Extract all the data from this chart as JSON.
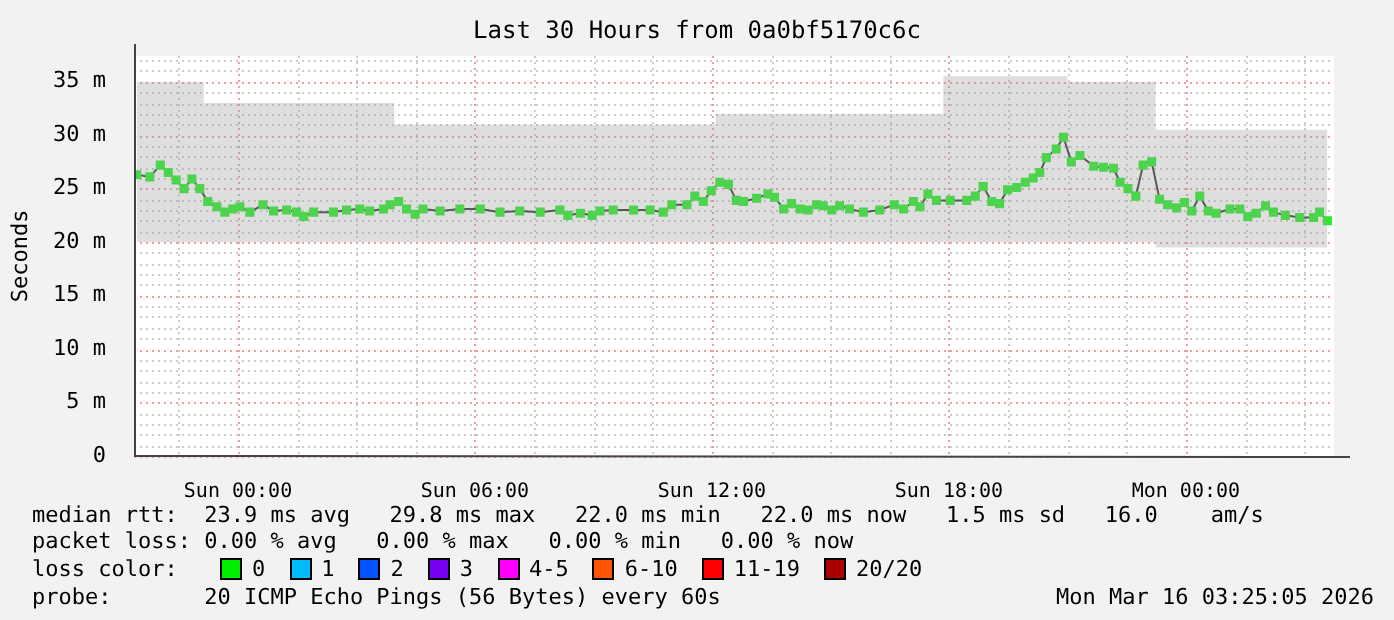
{
  "chart_data": {
    "type": "line",
    "title": "Last 30 Hours from 0a0bf5170c6c",
    "ylabel": "Seconds",
    "xlim": [
      "2026-03-14T21:22",
      "2026-03-16T03:45"
    ],
    "xticks": [
      {
        "value": "2026-03-15T00:00",
        "label": "Sun 00:00"
      },
      {
        "value": "2026-03-15T06:00",
        "label": "Sun 06:00"
      },
      {
        "value": "2026-03-15T12:00",
        "label": "Sun 12:00"
      },
      {
        "value": "2026-03-15T18:00",
        "label": "Sun 18:00"
      },
      {
        "value": "2026-03-16T00:00",
        "label": "Mon 00:00"
      }
    ],
    "ylim": [
      0,
      37.4
    ],
    "yticks": [
      {
        "value": 0,
        "label": "0"
      },
      {
        "value": 5,
        "label": "5 m"
      },
      {
        "value": 10,
        "label": "10 m"
      },
      {
        "value": 15,
        "label": "15 m"
      },
      {
        "value": 20,
        "label": "20 m"
      },
      {
        "value": 25,
        "label": "25 m"
      },
      {
        "value": 30,
        "label": "30 m"
      },
      {
        "value": 35,
        "label": "35 m"
      }
    ],
    "grid": true,
    "marker": "square",
    "line_style": "solid",
    "series": [
      {
        "color": "#22ee22",
        "x": [
          "2026-03-14T21:26",
          "2026-03-14T21:46",
          "2026-03-14T22:02",
          "2026-03-14T22:14",
          "2026-03-14T22:26",
          "2026-03-14T22:38",
          "2026-03-14T22:50",
          "2026-03-14T23:02",
          "2026-03-14T23:14",
          "2026-03-14T23:28",
          "2026-03-14T23:40",
          "2026-03-14T23:52",
          "2026-03-15T00:03",
          "2026-03-15T00:18",
          "2026-03-15T00:38",
          "2026-03-15T00:54",
          "2026-03-15T01:14",
          "2026-03-15T01:29",
          "2026-03-15T01:40",
          "2026-03-15T01:55",
          "2026-03-15T02:25",
          "2026-03-15T02:45",
          "2026-03-15T03:05",
          "2026-03-15T03:20",
          "2026-03-15T03:41",
          "2026-03-15T03:51",
          "2026-03-15T04:04",
          "2026-03-15T04:16",
          "2026-03-15T04:29",
          "2026-03-15T04:41",
          "2026-03-15T05:07",
          "2026-03-15T05:37",
          "2026-03-15T06:08",
          "2026-03-15T06:38",
          "2026-03-15T07:08",
          "2026-03-15T07:39",
          "2026-03-15T08:09",
          "2026-03-15T08:21",
          "2026-03-15T08:40",
          "2026-03-15T08:58",
          "2026-03-15T09:10",
          "2026-03-15T09:30",
          "2026-03-15T10:01",
          "2026-03-15T10:26",
          "2026-03-15T10:46",
          "2026-03-15T10:59",
          "2026-03-15T11:22",
          "2026-03-15T11:34",
          "2026-03-15T11:47",
          "2026-03-15T11:59",
          "2026-03-15T12:12",
          "2026-03-15T12:25",
          "2026-03-15T12:37",
          "2026-03-15T12:48",
          "2026-03-15T13:08",
          "2026-03-15T13:25",
          "2026-03-15T13:35",
          "2026-03-15T13:49",
          "2026-03-15T14:01",
          "2026-03-15T14:14",
          "2026-03-15T14:26",
          "2026-03-15T14:39",
          "2026-03-15T14:49",
          "2026-03-15T15:02",
          "2026-03-15T15:14",
          "2026-03-15T15:29",
          "2026-03-15T15:50",
          "2026-03-15T16:15",
          "2026-03-15T16:37",
          "2026-03-15T16:51",
          "2026-03-15T17:06",
          "2026-03-15T17:16",
          "2026-03-15T17:28",
          "2026-03-15T17:41",
          "2026-03-15T18:02",
          "2026-03-15T18:27",
          "2026-03-15T18:40",
          "2026-03-15T18:52",
          "2026-03-15T19:05",
          "2026-03-15T19:17",
          "2026-03-15T19:29",
          "2026-03-15T19:43",
          "2026-03-15T19:56",
          "2026-03-15T20:08",
          "2026-03-15T20:18",
          "2026-03-15T20:28",
          "2026-03-15T20:43",
          "2026-03-15T20:54",
          "2026-03-15T21:06",
          "2026-03-15T21:19",
          "2026-03-15T21:40",
          "2026-03-15T21:55",
          "2026-03-15T22:10",
          "2026-03-15T22:20",
          "2026-03-15T22:32",
          "2026-03-15T22:44",
          "2026-03-15T22:55",
          "2026-03-15T23:08",
          "2026-03-15T23:20",
          "2026-03-15T23:32",
          "2026-03-15T23:46",
          "2026-03-15T23:58",
          "2026-03-16T00:09",
          "2026-03-16T00:21",
          "2026-03-16T00:34",
          "2026-03-16T00:46",
          "2026-03-16T01:07",
          "2026-03-16T01:22",
          "2026-03-16T01:34",
          "2026-03-16T01:47",
          "2026-03-16T02:01",
          "2026-03-16T02:13",
          "2026-03-16T02:31",
          "2026-03-16T02:53",
          "2026-03-16T03:14",
          "2026-03-16T03:23",
          "2026-03-16T03:35"
        ],
        "values": [
          26.3,
          26.1,
          27.2,
          26.5,
          25.8,
          25.0,
          25.9,
          25.0,
          23.8,
          23.3,
          22.8,
          23.1,
          23.3,
          22.8,
          23.5,
          22.9,
          23.0,
          22.8,
          22.4,
          22.8,
          22.8,
          23.0,
          23.1,
          22.9,
          23.1,
          23.5,
          23.8,
          23.1,
          22.6,
          23.1,
          22.9,
          23.1,
          23.1,
          22.8,
          22.9,
          22.8,
          23.0,
          22.5,
          22.7,
          22.5,
          22.9,
          23.0,
          23.0,
          23.0,
          22.8,
          23.5,
          23.5,
          24.3,
          23.8,
          24.8,
          25.6,
          25.4,
          23.9,
          23.8,
          24.1,
          24.5,
          24.2,
          23.1,
          23.6,
          23.1,
          23.0,
          23.5,
          23.4,
          23.0,
          23.4,
          23.1,
          22.8,
          23.0,
          23.5,
          23.1,
          23.8,
          23.3,
          24.5,
          23.9,
          23.9,
          23.9,
          24.3,
          25.2,
          23.8,
          23.6,
          24.9,
          25.1,
          25.6,
          26.0,
          26.5,
          27.9,
          28.7,
          29.8,
          27.5,
          28.1,
          27.1,
          27.0,
          26.9,
          25.6,
          25.0,
          24.3,
          27.2,
          27.5,
          24.0,
          23.5,
          23.2,
          23.7,
          22.9,
          24.3,
          22.9,
          22.7,
          23.1,
          23.1,
          22.4,
          22.7,
          23.4,
          22.8,
          22.5,
          22.3,
          22.3,
          22.8,
          22.0
        ],
        "lower": [
          20,
          20,
          20,
          20,
          20,
          20,
          20,
          20,
          20,
          20,
          20,
          20,
          20,
          20,
          20,
          20,
          20,
          20,
          20,
          20,
          20,
          20,
          20,
          20,
          20,
          20,
          20,
          20,
          20,
          20,
          20,
          20,
          20,
          20,
          20,
          20,
          20,
          20,
          20,
          20,
          20,
          20,
          20,
          20,
          20,
          20,
          20,
          20,
          20,
          20,
          20,
          20,
          20,
          20,
          20,
          20,
          20,
          20,
          20,
          20,
          20,
          20,
          20,
          20,
          20,
          20,
          20,
          20,
          20,
          20,
          20,
          20,
          20,
          20,
          20,
          20,
          20,
          20,
          20,
          20,
          20,
          20,
          20,
          20,
          20,
          20,
          20,
          20,
          20,
          20,
          20,
          20,
          20,
          20,
          20,
          20,
          20,
          20,
          19.5,
          19.5,
          19.5,
          19.5,
          19.5,
          19.5,
          19.5,
          19.5,
          19.5,
          19.5,
          19.5,
          19.5,
          19.5,
          19.5,
          19.5,
          19.5,
          19.5,
          19.5,
          19.5
        ],
        "upper": [
          35,
          35,
          35,
          35,
          35,
          35,
          35,
          35,
          33,
          33,
          33,
          33,
          33,
          33,
          33,
          33,
          33,
          33,
          33,
          33,
          33,
          33,
          33,
          33,
          33,
          33,
          31,
          31,
          31,
          31,
          31,
          31,
          31,
          31,
          31,
          31,
          31,
          31,
          31,
          31,
          31,
          31,
          31,
          31,
          31,
          31,
          31,
          31,
          31,
          31,
          32,
          32,
          32,
          32,
          32,
          32,
          32,
          32,
          32,
          32,
          32,
          32,
          32,
          32,
          32,
          32,
          32,
          32,
          32,
          32,
          32,
          32,
          32,
          32,
          35.5,
          35.5,
          35.5,
          35.5,
          35.5,
          35.5,
          35.5,
          35.5,
          35.5,
          35.5,
          35.5,
          35.5,
          35.5,
          35.5,
          35,
          35,
          35,
          35,
          35,
          35,
          35,
          35,
          35,
          35,
          30.5,
          30.5,
          30.5,
          30.5,
          30.5,
          30.5,
          30.5,
          30.5,
          30.5,
          30.5,
          30.5,
          30.5,
          30.5,
          30.5,
          30.5,
          30.5,
          30.5,
          30.5,
          30.5
        ]
      }
    ],
    "annotations": [
      "median rtt:  23.9 ms avg   29.8 ms max   22.0 ms min   22.0 ms now   1.5 ms sd   16.0    am/s",
      "packet loss: 0.00 % avg   0.00 % max   0.00 % min   0.00 % now",
      "loss color:",
      "0",
      "1",
      "2",
      "3",
      "4-5",
      "6-10",
      "11-19",
      "20/20",
      "probe:       20 ICMP Echo Pings (56 Bytes) every 60s",
      "Mon Mar 16 03:25:05 2026"
    ]
  }
}
